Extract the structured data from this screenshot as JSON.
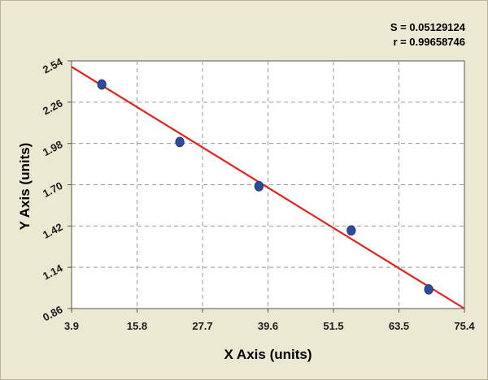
{
  "chart_data": {
    "type": "scatter",
    "xlabel": "X Axis (units)",
    "ylabel": "Y Axis (units)",
    "xlim": [
      3.9,
      75.4
    ],
    "ylim": [
      0.86,
      2.54
    ],
    "x_ticks": [
      "3.9",
      "15.8",
      "27.7",
      "39.6",
      "51.5",
      "63.5",
      "75.4"
    ],
    "y_ticks": [
      "0.86",
      "1.14",
      "1.42",
      "1.70",
      "1.98",
      "2.26",
      "2.54"
    ],
    "grid": true,
    "stats": {
      "s_label": "S = 0.05129124",
      "r_label": "r = 0.99658746"
    },
    "series": [
      {
        "points": [
          {
            "x": 9.4,
            "y": 2.38
          },
          {
            "x": 23.6,
            "y": 1.99
          },
          {
            "x": 38.0,
            "y": 1.69
          },
          {
            "x": 54.8,
            "y": 1.39
          },
          {
            "x": 68.9,
            "y": 0.99
          }
        ],
        "color": "#2e4a9a"
      }
    ],
    "fit_line": {
      "x": [
        3.9,
        75.4
      ],
      "y": [
        2.5,
        0.86
      ],
      "color": "#e0231c"
    }
  }
}
